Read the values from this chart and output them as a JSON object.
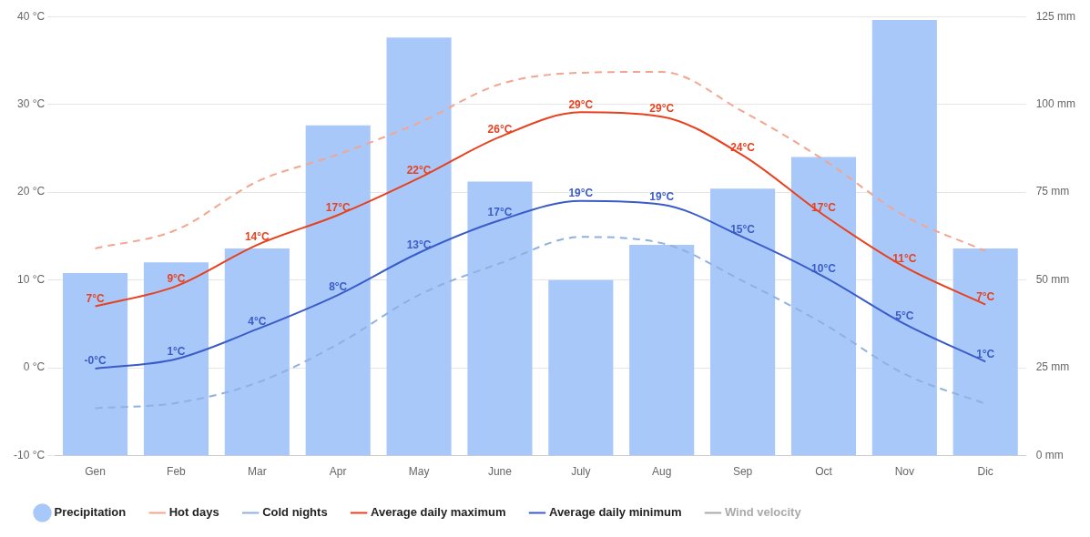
{
  "chart_data": {
    "type": "line",
    "categories": [
      "Gen",
      "Feb",
      "Mar",
      "Apr",
      "May",
      "June",
      "July",
      "Aug",
      "Sep",
      "Oct",
      "Nov",
      "Dic"
    ],
    "ylim": [
      -10,
      40
    ],
    "yticks": [
      {
        "value": -10,
        "label": "-10 °C"
      },
      {
        "value": 0,
        "label": "0 °C"
      },
      {
        "value": 10,
        "label": "10 °C"
      },
      {
        "value": 20,
        "label": "20 °C"
      },
      {
        "value": 30,
        "label": "30 °C"
      },
      {
        "value": 40,
        "label": "40 °C"
      }
    ],
    "y2lim": [
      0,
      125
    ],
    "y2ticks": [
      {
        "value": 0,
        "label": "0 mm"
      },
      {
        "value": 25,
        "label": "25 mm"
      },
      {
        "value": 50,
        "label": "50 mm"
      },
      {
        "value": 75,
        "label": "75 mm"
      },
      {
        "value": 100,
        "label": "100 mm"
      },
      {
        "value": 125,
        "label": "125 mm"
      }
    ],
    "grid": "y",
    "legend": "bottom",
    "marker": "none",
    "series": [
      {
        "name": "Precipitation",
        "type": "bar",
        "axis": "y2",
        "color": "#a8c8fa",
        "values": [
          52,
          55,
          59,
          94,
          119,
          78,
          50,
          60,
          76,
          85,
          124,
          59
        ]
      },
      {
        "name": "Hot days",
        "line_style": "dashed",
        "color": "#f4a58e",
        "values": [
          13.6,
          15.7,
          21.2,
          24.3,
          27.9,
          32.3,
          33.6,
          33.7,
          29.2,
          23.7,
          17.3,
          13.3
        ]
      },
      {
        "name": "Cold nights",
        "line_style": "dashed",
        "color": "#8fb1e0",
        "values": [
          -4.6,
          -4.0,
          -1.7,
          2.7,
          8.3,
          11.9,
          14.9,
          14.2,
          9.9,
          5.0,
          -0.7,
          -4.1
        ]
      },
      {
        "name": "Average daily maximum",
        "color": "#e8411e",
        "values": [
          7.0,
          9.3,
          14.0,
          17.4,
          21.6,
          26.3,
          29.1,
          28.6,
          24.2,
          17.4,
          11.5,
          7.2
        ],
        "value_labels": [
          "7°C",
          "9°C",
          "14°C",
          "17°C",
          "22°C",
          "26°C",
          "29°C",
          "29°C",
          "24°C",
          "17°C",
          "11°C",
          "7°C"
        ]
      },
      {
        "name": "Average daily minimum",
        "color": "#3a5cc8",
        "values": [
          -0.1,
          1.0,
          4.4,
          8.3,
          13.1,
          16.8,
          19.0,
          18.6,
          14.9,
          10.4,
          5.0,
          0.7
        ],
        "value_labels": [
          "-0°C",
          "1°C",
          "4°C",
          "8°C",
          "13°C",
          "17°C",
          "19°C",
          "19°C",
          "15°C",
          "10°C",
          "5°C",
          "1°C"
        ]
      },
      {
        "name": "Wind velocity",
        "color": "#aaaaaa",
        "values": [
          null,
          null,
          null,
          null,
          null,
          null,
          null,
          null,
          null,
          null,
          null,
          null
        ]
      }
    ]
  }
}
